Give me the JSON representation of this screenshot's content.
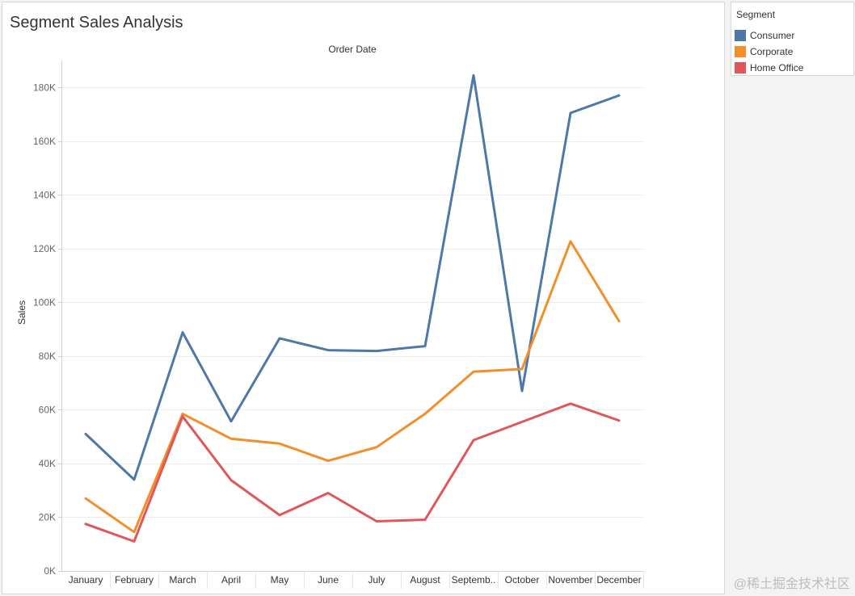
{
  "title": "Segment Sales Analysis",
  "legend": {
    "title": "Segment",
    "items": [
      {
        "label": "Consumer",
        "color": "#4e79a7"
      },
      {
        "label": "Corporate",
        "color": "#f28e2b"
      },
      {
        "label": "Home Office",
        "color": "#e15759"
      }
    ]
  },
  "watermark": "@稀土掘金技术社区",
  "chart_data": {
    "type": "line",
    "title": "Segment Sales Analysis",
    "top_axis_label": "Order Date",
    "xlabel": "",
    "ylabel": "Sales",
    "categories": [
      "January",
      "February",
      "March",
      "April",
      "May",
      "June",
      "July",
      "August",
      "Septemb..",
      "October",
      "November",
      "December"
    ],
    "ylim": [
      0,
      190000
    ],
    "yticks": [
      0,
      20000,
      40000,
      60000,
      80000,
      100000,
      120000,
      140000,
      160000,
      180000
    ],
    "ytick_labels": [
      "0K",
      "20K",
      "40K",
      "60K",
      "80K",
      "100K",
      "120K",
      "140K",
      "160K",
      "180K"
    ],
    "grid": true,
    "legend_position": "right",
    "series": [
      {
        "name": "Consumer",
        "color": "#4e79a7",
        "values": [
          51000,
          34000,
          88800,
          55700,
          86600,
          82200,
          81900,
          83700,
          184500,
          67000,
          170500,
          177000
        ]
      },
      {
        "name": "Corporate",
        "color": "#f28e2b",
        "values": [
          27000,
          14500,
          58500,
          49200,
          47400,
          41000,
          46100,
          58500,
          74200,
          75200,
          122700,
          93000
        ]
      },
      {
        "name": "Home Office",
        "color": "#e15759",
        "values": [
          17500,
          11000,
          57500,
          33800,
          20800,
          29000,
          18500,
          19100,
          48700,
          55500,
          62300,
          56000
        ]
      }
    ]
  }
}
